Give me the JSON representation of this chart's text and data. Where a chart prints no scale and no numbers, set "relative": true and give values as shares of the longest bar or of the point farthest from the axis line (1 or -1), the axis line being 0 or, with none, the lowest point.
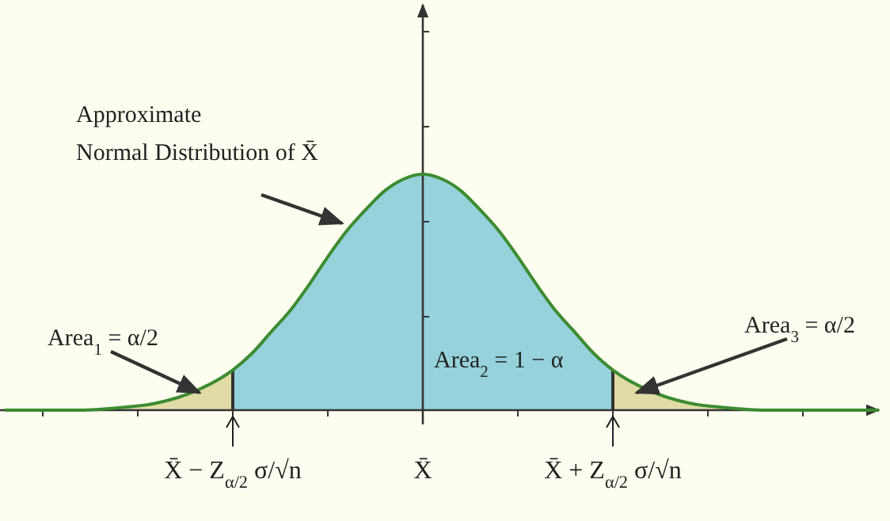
{
  "chart_data": {
    "type": "area",
    "relative": true,
    "x": [
      -4.4,
      -4,
      -3.6,
      -3.2,
      -2.8,
      -2.4,
      -2,
      -1.8,
      -1.6,
      -1.4,
      -1.2,
      -1,
      -0.8,
      -0.6,
      -0.4,
      -0.2,
      0,
      0.2,
      0.4,
      0.6,
      0.8,
      1,
      1.2,
      1.4,
      1.6,
      1.8,
      2,
      2.4,
      2.8,
      3.2,
      3.6,
      4,
      4.4,
      4.8
    ],
    "series": [
      {
        "color": "#3c8c30",
        "values": [
          0,
          0,
          0,
          0.01,
          0.03,
          0.08,
          0.17,
          0.24,
          0.33,
          0.42,
          0.53,
          0.65,
          0.76,
          0.85,
          0.93,
          0.98,
          1,
          0.98,
          0.93,
          0.85,
          0.76,
          0.65,
          0.53,
          0.42,
          0.33,
          0.24,
          0.17,
          0.08,
          0.03,
          0.01,
          0,
          0,
          0,
          0
        ]
      }
    ],
    "xlim": [
      -4.45,
      4.8
    ],
    "xticks": [
      {
        "value": -4,
        "label": null
      },
      {
        "value": -3,
        "label": null
      },
      {
        "value": -2,
        "label": "X̄ − Z$_{α/2}$ σ/√n"
      },
      {
        "value": -1,
        "label": null
      },
      {
        "value": 0,
        "label": "X̄"
      },
      {
        "value": 1,
        "label": null
      },
      {
        "value": 2,
        "label": "X̄ + Z$_{α/2}$ σ/√n"
      },
      {
        "value": 3,
        "label": null
      },
      {
        "value": 4,
        "label": null
      }
    ],
    "bands": [
      {
        "axis": "x",
        "from": -4.45,
        "to": -2,
        "color": "#efe2b0"
      },
      {
        "axis": "x",
        "from": -2,
        "to": 2,
        "color": "#9dd8ea"
      },
      {
        "axis": "x",
        "from": 2,
        "to": 4.8,
        "color": "#efe2b0"
      }
    ],
    "annotations": [
      "Approximate\nNormal Distribution of X̄",
      "Area$_{1}$ = α/2",
      "Area$_{2}$ = 1 − α",
      "Area$_{3}$ = α/2"
    ]
  }
}
